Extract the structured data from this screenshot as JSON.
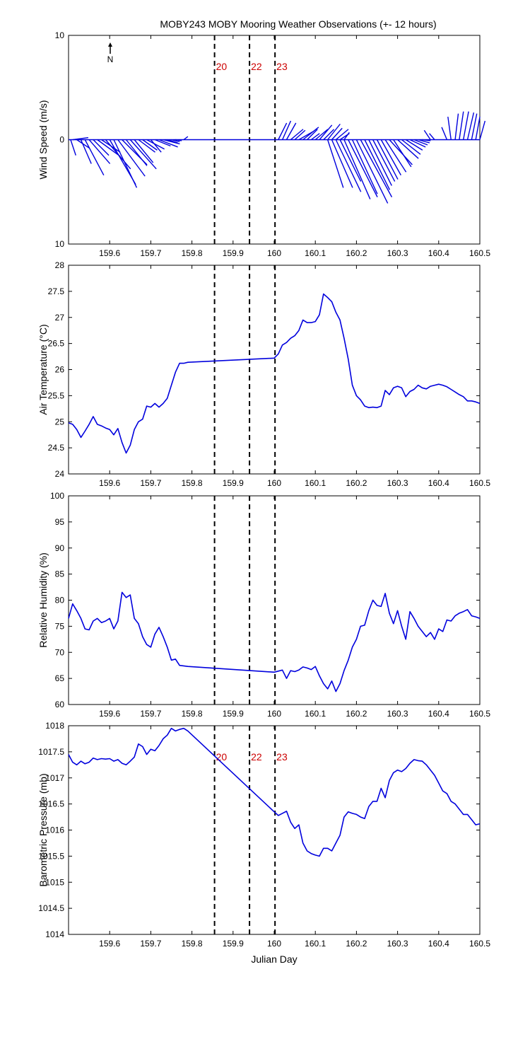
{
  "chart_data": [
    {
      "type": "line",
      "subtype": "wind-stick",
      "title": "MOBY243 MOBY Mooring Weather Observations (+- 12 hours)",
      "ylabel": "Wind Speed (m/s)",
      "xlabel": "",
      "xlim": [
        159.5,
        160.5
      ],
      "ylim": [
        -10,
        10
      ],
      "xticks": [
        "159.6",
        "159.7",
        "159.8",
        "159.9",
        "160",
        "160.1",
        "160.2",
        "160.3",
        "160.4",
        "160.5"
      ],
      "xtick_values": [
        159.6,
        159.7,
        159.8,
        159.9,
        160.0,
        160.1,
        160.2,
        160.3,
        160.4,
        160.5
      ],
      "yticks": [
        "10",
        "0",
        "10"
      ],
      "ytick_values": [
        10,
        0,
        -10
      ],
      "north_label": "N",
      "vlines": [
        {
          "x": 159.855,
          "label": "20"
        },
        {
          "x": 159.94,
          "label": "22"
        },
        {
          "x": 160.002,
          "label": "23"
        }
      ],
      "sticks": [
        {
          "x": 159.505,
          "u": 0.5,
          "v": -1.5
        },
        {
          "x": 159.51,
          "u": 1.5,
          "v": 0.2
        },
        {
          "x": 159.52,
          "u": 1.2,
          "v": -0.8
        },
        {
          "x": 159.53,
          "u": 1.0,
          "v": -2.3
        },
        {
          "x": 159.54,
          "u": 1.8,
          "v": -3.4
        },
        {
          "x": 159.55,
          "u": 2.0,
          "v": -2.3
        },
        {
          "x": 159.56,
          "u": 1.5,
          "v": -1.5
        },
        {
          "x": 159.57,
          "u": 2.2,
          "v": -1.6
        },
        {
          "x": 159.58,
          "u": 1.8,
          "v": -1.2
        },
        {
          "x": 159.59,
          "u": 2.4,
          "v": -2.8
        },
        {
          "x": 159.6,
          "u": 2.5,
          "v": -4.3
        },
        {
          "x": 159.61,
          "u": 2.2,
          "v": -4.6
        },
        {
          "x": 159.62,
          "u": 2.6,
          "v": -3.5
        },
        {
          "x": 159.63,
          "u": 2.4,
          "v": -2.4
        },
        {
          "x": 159.64,
          "u": 2.0,
          "v": -2.5
        },
        {
          "x": 159.65,
          "u": 2.5,
          "v": -2.8
        },
        {
          "x": 159.66,
          "u": 1.8,
          "v": -2.2
        },
        {
          "x": 159.67,
          "u": 1.6,
          "v": -1.2
        },
        {
          "x": 159.68,
          "u": 1.4,
          "v": -1.0
        },
        {
          "x": 159.69,
          "u": 1.7,
          "v": -0.9
        },
        {
          "x": 159.7,
          "u": 1.0,
          "v": -1.2
        },
        {
          "x": 159.71,
          "u": 1.5,
          "v": -0.6
        },
        {
          "x": 159.72,
          "u": 1.8,
          "v": -0.7
        },
        {
          "x": 159.73,
          "u": 1.6,
          "v": -0.4
        },
        {
          "x": 159.74,
          "u": 1.0,
          "v": -0.3
        },
        {
          "x": 159.75,
          "u": 0.8,
          "v": -0.2
        },
        {
          "x": 159.76,
          "u": 0.6,
          "v": -0.1
        },
        {
          "x": 159.78,
          "u": 0.4,
          "v": 0.3
        },
        {
          "x": 160.01,
          "u": 0.8,
          "v": 1.6
        },
        {
          "x": 160.02,
          "u": 0.8,
          "v": 1.8
        },
        {
          "x": 160.03,
          "u": 0.9,
          "v": 1.6
        },
        {
          "x": 160.04,
          "u": 1.2,
          "v": 1.0
        },
        {
          "x": 160.05,
          "u": 1.0,
          "v": 0.9
        },
        {
          "x": 160.06,
          "u": 1.4,
          "v": 0.8
        },
        {
          "x": 160.07,
          "u": 1.5,
          "v": 1.2
        },
        {
          "x": 160.08,
          "u": 1.0,
          "v": 1.0
        },
        {
          "x": 160.09,
          "u": 0.8,
          "v": 0.6
        },
        {
          "x": 160.1,
          "u": 1.2,
          "v": 1.0
        },
        {
          "x": 160.11,
          "u": 1.2,
          "v": 1.4
        },
        {
          "x": 160.12,
          "u": 1.0,
          "v": 1.0
        },
        {
          "x": 160.13,
          "u": 1.2,
          "v": 1.5
        },
        {
          "x": 160.14,
          "u": 1.0,
          "v": 1.1
        },
        {
          "x": 160.15,
          "u": 1.2,
          "v": 1.0
        },
        {
          "x": 160.16,
          "u": 0.9,
          "v": 0.6
        },
        {
          "x": 160.17,
          "u": 0.5,
          "v": 0.7
        },
        {
          "x": 160.13,
          "u": 1.5,
          "v": -4.6
        },
        {
          "x": 160.14,
          "u": 2.0,
          "v": -4.6
        },
        {
          "x": 160.15,
          "u": 2.4,
          "v": -5.0
        },
        {
          "x": 160.16,
          "u": 2.0,
          "v": -4.0
        },
        {
          "x": 160.17,
          "u": 2.5,
          "v": -5.7
        },
        {
          "x": 160.18,
          "u": 2.8,
          "v": -5.5
        },
        {
          "x": 160.19,
          "u": 2.4,
          "v": -5.2
        },
        {
          "x": 160.2,
          "u": 3.0,
          "v": -6.1
        },
        {
          "x": 160.21,
          "u": 3.0,
          "v": -5.5
        },
        {
          "x": 160.22,
          "u": 2.4,
          "v": -4.8
        },
        {
          "x": 160.23,
          "u": 2.2,
          "v": -4.4
        },
        {
          "x": 160.24,
          "u": 2.1,
          "v": -4.0
        },
        {
          "x": 160.25,
          "u": 2.0,
          "v": -3.8
        },
        {
          "x": 160.26,
          "u": 1.9,
          "v": -3.4
        },
        {
          "x": 160.27,
          "u": 2.0,
          "v": -3.1
        },
        {
          "x": 160.28,
          "u": 2.2,
          "v": -2.4
        },
        {
          "x": 160.29,
          "u": 1.7,
          "v": -2.6
        },
        {
          "x": 160.3,
          "u": 2.0,
          "v": -1.8
        },
        {
          "x": 160.31,
          "u": 1.8,
          "v": -1.4
        },
        {
          "x": 160.32,
          "u": 1.6,
          "v": -1.0
        },
        {
          "x": 160.33,
          "u": 1.5,
          "v": -0.7
        },
        {
          "x": 160.34,
          "u": 1.3,
          "v": -0.5
        },
        {
          "x": 160.35,
          "u": 1.1,
          "v": -0.3
        },
        {
          "x": 160.36,
          "u": 0.8,
          "v": -0.1
        },
        {
          "x": 160.38,
          "u": -0.6,
          "v": 0.9
        },
        {
          "x": 160.39,
          "u": -0.5,
          "v": 0.6
        },
        {
          "x": 160.42,
          "u": -0.5,
          "v": 1.2
        },
        {
          "x": 160.43,
          "u": -0.3,
          "v": 2.2
        },
        {
          "x": 160.44,
          "u": 0.3,
          "v": 2.5
        },
        {
          "x": 160.45,
          "u": 0.4,
          "v": 2.7
        },
        {
          "x": 160.46,
          "u": 0.5,
          "v": 2.7
        },
        {
          "x": 160.47,
          "u": 0.6,
          "v": 2.6
        },
        {
          "x": 160.48,
          "u": 0.5,
          "v": 2.5
        },
        {
          "x": 160.49,
          "u": 0.4,
          "v": 2.2
        },
        {
          "x": 160.5,
          "u": 0.5,
          "v": 1.8
        }
      ]
    },
    {
      "type": "line",
      "ylabel": "Air Temperature (°C)",
      "xlabel": "",
      "xlim": [
        159.5,
        160.5
      ],
      "ylim": [
        24,
        28
      ],
      "xticks": [
        "159.6",
        "159.7",
        "159.8",
        "159.9",
        "160",
        "160.1",
        "160.2",
        "160.3",
        "160.4",
        "160.5"
      ],
      "xtick_values": [
        159.6,
        159.7,
        159.8,
        159.9,
        160.0,
        160.1,
        160.2,
        160.3,
        160.4,
        160.5
      ],
      "yticks": [
        "24",
        "24.5",
        "25",
        "25.5",
        "26",
        "26.5",
        "27",
        "27.5",
        "28"
      ],
      "ytick_values": [
        24,
        24.5,
        25,
        25.5,
        26,
        26.5,
        27,
        27.5,
        28
      ],
      "vlines": [
        {
          "x": 159.855,
          "label": ""
        },
        {
          "x": 159.94,
          "label": ""
        },
        {
          "x": 160.002,
          "label": ""
        }
      ],
      "x": [
        159.5,
        159.51,
        159.52,
        159.53,
        159.54,
        159.55,
        159.56,
        159.57,
        159.58,
        159.59,
        159.6,
        159.61,
        159.62,
        159.63,
        159.64,
        159.65,
        159.66,
        159.67,
        159.68,
        159.69,
        159.7,
        159.71,
        159.72,
        159.73,
        159.74,
        159.75,
        159.76,
        159.77,
        159.78,
        159.79,
        160.0,
        160.01,
        160.02,
        160.03,
        160.04,
        160.05,
        160.06,
        160.07,
        160.08,
        160.09,
        160.1,
        160.11,
        160.12,
        160.13,
        160.14,
        160.15,
        160.16,
        160.17,
        160.18,
        160.19,
        160.2,
        160.21,
        160.22,
        160.23,
        160.24,
        160.25,
        160.26,
        160.27,
        160.28,
        160.29,
        160.3,
        160.31,
        160.32,
        160.33,
        160.34,
        160.35,
        160.36,
        160.37,
        160.38,
        160.39,
        160.4,
        160.41,
        160.42,
        160.43,
        160.44,
        160.45,
        160.46,
        160.47,
        160.48,
        160.49,
        160.5
      ],
      "y": [
        24.98,
        24.95,
        24.85,
        24.7,
        24.82,
        24.95,
        25.1,
        24.95,
        24.92,
        24.88,
        24.85,
        24.75,
        24.87,
        24.6,
        24.4,
        24.55,
        24.85,
        25.0,
        25.05,
        25.3,
        25.28,
        25.35,
        25.28,
        25.35,
        25.45,
        25.7,
        25.95,
        26.12,
        26.12,
        26.14,
        26.22,
        26.3,
        26.47,
        26.52,
        26.6,
        26.65,
        26.75,
        26.95,
        26.9,
        26.9,
        26.92,
        27.05,
        27.45,
        27.38,
        27.3,
        27.1,
        26.95,
        26.6,
        26.2,
        25.7,
        25.5,
        25.42,
        25.3,
        25.27,
        25.28,
        25.27,
        25.3,
        25.6,
        25.52,
        25.65,
        25.68,
        25.65,
        25.48,
        25.58,
        25.62,
        25.7,
        25.65,
        25.63,
        25.68,
        25.7,
        25.72,
        25.7,
        25.67,
        25.62,
        25.57,
        25.52,
        25.48,
        25.4,
        25.4,
        25.38,
        25.35
      ]
    },
    {
      "type": "line",
      "ylabel": "Relative Humidity (%)",
      "xlabel": "",
      "xlim": [
        159.5,
        160.5
      ],
      "ylim": [
        60,
        100
      ],
      "xticks": [
        "159.6",
        "159.7",
        "159.8",
        "159.9",
        "160",
        "160.1",
        "160.2",
        "160.3",
        "160.4",
        "160.5"
      ],
      "xtick_values": [
        159.6,
        159.7,
        159.8,
        159.9,
        160.0,
        160.1,
        160.2,
        160.3,
        160.4,
        160.5
      ],
      "yticks": [
        "60",
        "65",
        "70",
        "75",
        "80",
        "85",
        "90",
        "95",
        "100"
      ],
      "ytick_values": [
        60,
        65,
        70,
        75,
        80,
        85,
        90,
        95,
        100
      ],
      "vlines": [
        {
          "x": 159.855,
          "label": ""
        },
        {
          "x": 159.94,
          "label": ""
        },
        {
          "x": 160.002,
          "label": ""
        }
      ],
      "x": [
        159.5,
        159.51,
        159.52,
        159.53,
        159.54,
        159.55,
        159.56,
        159.57,
        159.58,
        159.59,
        159.6,
        159.61,
        159.62,
        159.63,
        159.64,
        159.65,
        159.66,
        159.67,
        159.68,
        159.69,
        159.7,
        159.71,
        159.72,
        159.73,
        159.74,
        159.75,
        159.76,
        159.77,
        159.78,
        159.79,
        160.0,
        160.01,
        160.02,
        160.03,
        160.04,
        160.05,
        160.06,
        160.07,
        160.08,
        160.09,
        160.1,
        160.11,
        160.12,
        160.13,
        160.14,
        160.15,
        160.16,
        160.17,
        160.18,
        160.19,
        160.2,
        160.21,
        160.22,
        160.23,
        160.24,
        160.25,
        160.26,
        160.27,
        160.28,
        160.29,
        160.3,
        160.31,
        160.32,
        160.33,
        160.34,
        160.35,
        160.36,
        160.37,
        160.38,
        160.39,
        160.4,
        160.41,
        160.42,
        160.43,
        160.44,
        160.45,
        160.46,
        160.47,
        160.48,
        160.49,
        160.5
      ],
      "y": [
        76.5,
        79.3,
        78.0,
        76.5,
        74.5,
        74.3,
        76.0,
        76.5,
        75.7,
        76.0,
        76.5,
        74.5,
        76.0,
        81.5,
        80.5,
        81.0,
        76.5,
        75.5,
        73.0,
        71.5,
        71.0,
        73.5,
        74.8,
        73.0,
        71.0,
        68.5,
        68.7,
        67.5,
        67.4,
        67.3,
        66.2,
        66.4,
        66.6,
        65.0,
        66.5,
        66.3,
        66.6,
        67.2,
        67.0,
        66.7,
        67.3,
        65.5,
        64.0,
        63.0,
        64.5,
        62.5,
        64.0,
        66.5,
        68.5,
        71.0,
        72.5,
        75.0,
        75.2,
        78.0,
        80.0,
        79.0,
        78.8,
        81.3,
        77.5,
        75.5,
        78.0,
        75.0,
        72.5,
        77.8,
        76.5,
        75.0,
        74.0,
        73.0,
        73.8,
        72.5,
        74.5,
        74.0,
        76.2,
        76.0,
        77.0,
        77.5,
        77.8,
        78.2,
        77.0,
        76.8,
        76.5
      ]
    },
    {
      "type": "line",
      "ylabel": "Barometric Pressure (mb)",
      "xlabel": "Julian Day",
      "xlim": [
        159.5,
        160.5
      ],
      "ylim": [
        1014,
        1018
      ],
      "xticks": [
        "159.6",
        "159.7",
        "159.8",
        "159.9",
        "160",
        "160.1",
        "160.2",
        "160.3",
        "160.4",
        "160.5"
      ],
      "xtick_values": [
        159.6,
        159.7,
        159.8,
        159.9,
        160.0,
        160.1,
        160.2,
        160.3,
        160.4,
        160.5
      ],
      "yticks": [
        "1014",
        "1014.5",
        "1015",
        "1015.5",
        "1016",
        "1016.5",
        "1017",
        "1017.5",
        "1018"
      ],
      "ytick_values": [
        1014,
        1014.5,
        1015,
        1015.5,
        1016,
        1016.5,
        1017,
        1017.5,
        1018
      ],
      "vlines": [
        {
          "x": 159.855,
          "label": "20"
        },
        {
          "x": 159.94,
          "label": "22"
        },
        {
          "x": 160.002,
          "label": "23"
        }
      ],
      "x": [
        159.5,
        159.51,
        159.52,
        159.53,
        159.54,
        159.55,
        159.56,
        159.57,
        159.58,
        159.59,
        159.6,
        159.61,
        159.62,
        159.63,
        159.64,
        159.65,
        159.66,
        159.67,
        159.68,
        159.69,
        159.7,
        159.71,
        159.72,
        159.73,
        159.74,
        159.75,
        159.76,
        159.77,
        159.78,
        159.79,
        160.0,
        160.01,
        160.02,
        160.03,
        160.04,
        160.05,
        160.06,
        160.07,
        160.08,
        160.09,
        160.1,
        160.11,
        160.12,
        160.13,
        160.14,
        160.15,
        160.16,
        160.17,
        160.18,
        160.19,
        160.2,
        160.21,
        160.22,
        160.23,
        160.24,
        160.25,
        160.26,
        160.27,
        160.28,
        160.29,
        160.3,
        160.31,
        160.32,
        160.33,
        160.34,
        160.35,
        160.36,
        160.37,
        160.38,
        160.39,
        160.4,
        160.41,
        160.42,
        160.43,
        160.44,
        160.45,
        160.46,
        160.47,
        160.48,
        160.49,
        160.5
      ],
      "y": [
        1017.45,
        1017.3,
        1017.25,
        1017.32,
        1017.27,
        1017.3,
        1017.38,
        1017.35,
        1017.37,
        1017.36,
        1017.37,
        1017.32,
        1017.35,
        1017.28,
        1017.25,
        1017.32,
        1017.4,
        1017.65,
        1017.6,
        1017.45,
        1017.55,
        1017.52,
        1017.62,
        1017.75,
        1017.82,
        1017.95,
        1017.9,
        1017.93,
        1017.95,
        1017.9,
        1016.35,
        1016.28,
        1016.32,
        1016.36,
        1016.15,
        1016.03,
        1016.1,
        1015.75,
        1015.6,
        1015.55,
        1015.52,
        1015.5,
        1015.65,
        1015.65,
        1015.6,
        1015.75,
        1015.9,
        1016.25,
        1016.35,
        1016.32,
        1016.3,
        1016.25,
        1016.22,
        1016.45,
        1016.55,
        1016.55,
        1016.8,
        1016.62,
        1016.95,
        1017.1,
        1017.15,
        1017.12,
        1017.18,
        1017.28,
        1017.35,
        1017.33,
        1017.32,
        1017.25,
        1017.15,
        1017.05,
        1016.9,
        1016.75,
        1016.7,
        1016.55,
        1016.5,
        1016.4,
        1016.3,
        1016.3,
        1016.2,
        1016.1,
        1016.12
      ]
    }
  ]
}
